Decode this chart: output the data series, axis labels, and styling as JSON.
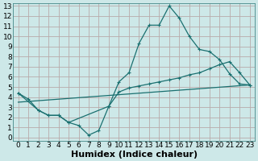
{
  "xlabel": "Humidex (Indice chaleur)",
  "xlim": [
    -0.5,
    23.5
  ],
  "ylim": [
    -0.3,
    13.3
  ],
  "xticks": [
    0,
    1,
    2,
    3,
    4,
    5,
    6,
    7,
    8,
    9,
    10,
    11,
    12,
    13,
    14,
    15,
    16,
    17,
    18,
    19,
    20,
    21,
    22,
    23
  ],
  "yticks": [
    0,
    1,
    2,
    3,
    4,
    5,
    6,
    7,
    8,
    9,
    10,
    11,
    12,
    13
  ],
  "background_color": "#cde8e8",
  "grid_color": "#b8aaaa",
  "line_color": "#1a7070",
  "line1_x": [
    0,
    1,
    2,
    3,
    4,
    5,
    6,
    7,
    8,
    9,
    10,
    11,
    12,
    13,
    14,
    15,
    16,
    17,
    18,
    19,
    20,
    21,
    22,
    23
  ],
  "line1_y": [
    4.4,
    3.8,
    2.7,
    2.2,
    2.2,
    1.5,
    1.2,
    0.25,
    0.7,
    3.1,
    5.5,
    6.4,
    9.3,
    11.1,
    11.1,
    13.0,
    11.8,
    10.0,
    8.7,
    8.5,
    7.7,
    6.3,
    5.3,
    5.2
  ],
  "line2_x": [
    0,
    2,
    3,
    4,
    5,
    9,
    10,
    11,
    12,
    13,
    14,
    15,
    16,
    17,
    18,
    19,
    20,
    21,
    22,
    23
  ],
  "line2_y": [
    4.4,
    2.7,
    2.2,
    2.2,
    1.5,
    3.1,
    4.5,
    4.9,
    5.1,
    5.3,
    5.5,
    5.7,
    5.9,
    6.2,
    6.4,
    6.8,
    7.2,
    7.5,
    6.4,
    5.2
  ],
  "line3_x": [
    0,
    23
  ],
  "line3_y": [
    3.5,
    5.2
  ],
  "fontsize_xlabel": 8,
  "fontsize_ticks": 6.5
}
